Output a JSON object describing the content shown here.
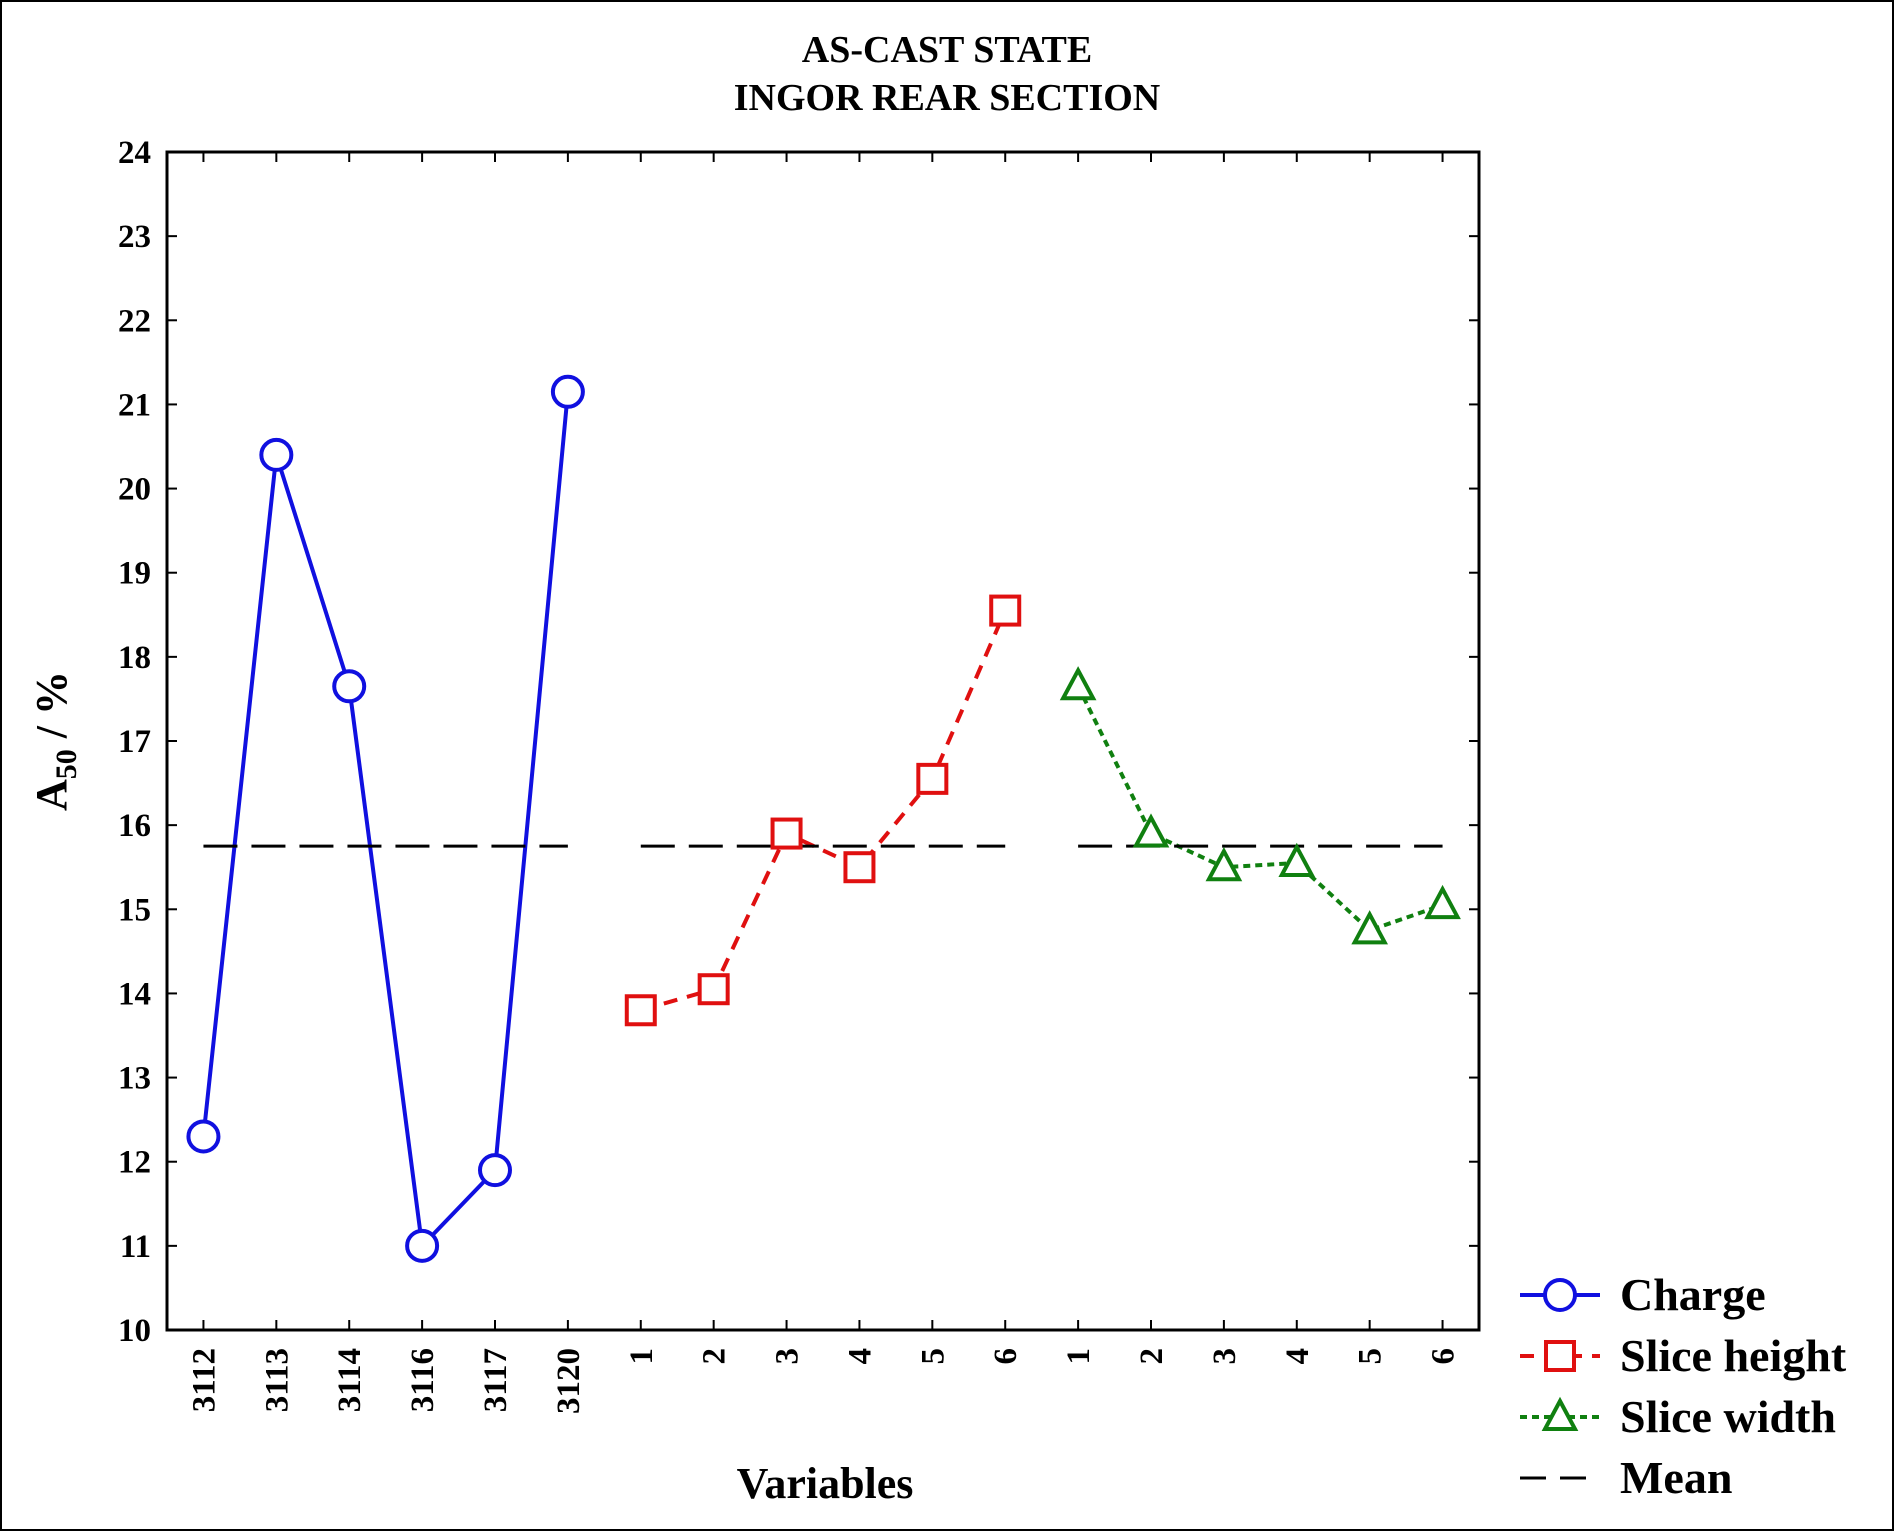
{
  "chart_data": {
    "type": "line",
    "title": [
      "AS-CAST STATE",
      "INGOR REAR SECTION"
    ],
    "x_label": "Variables",
    "y_label": [
      "A",
      "50",
      " / %"
    ],
    "categories": [
      "3112",
      "3113",
      "3114",
      "3116",
      "3117",
      "3120",
      "1",
      "2",
      "3",
      "4",
      "5",
      "6",
      "1",
      "2",
      "3",
      "4",
      "5",
      "6"
    ],
    "series": [
      {
        "name": "Charge",
        "color": "#1010e0",
        "dash": "solid",
        "marker": "circle",
        "values": [
          12.3,
          20.4,
          17.65,
          11.0,
          11.9,
          21.15,
          null,
          null,
          null,
          null,
          null,
          null,
          null,
          null,
          null,
          null,
          null,
          null
        ]
      },
      {
        "name": "Slice height",
        "color": "#e01010",
        "dash": "dashed",
        "marker": "square",
        "values": [
          null,
          null,
          null,
          null,
          null,
          null,
          13.8,
          14.05,
          15.9,
          15.5,
          16.55,
          18.55,
          null,
          null,
          null,
          null,
          null,
          null
        ]
      },
      {
        "name": "Slice width",
        "color": "#108010",
        "dash": "dotted",
        "marker": "triangle",
        "values": [
          null,
          null,
          null,
          null,
          null,
          null,
          null,
          null,
          null,
          null,
          null,
          null,
          17.65,
          15.9,
          15.5,
          15.55,
          14.75,
          15.05
        ]
      },
      {
        "name": "Mean",
        "color": "#000000",
        "dash": "long-dash",
        "marker": "none",
        "values": [
          15.75,
          15.75,
          15.75,
          15.75,
          15.75,
          15.75,
          15.75,
          15.75,
          15.75,
          15.75,
          15.75,
          15.75,
          15.75,
          15.75,
          15.75,
          15.75,
          15.75,
          15.75
        ]
      }
    ],
    "ylim": [
      10,
      24
    ],
    "yticks": [
      10,
      11,
      12,
      13,
      14,
      15,
      16,
      17,
      18,
      19,
      20,
      21,
      22,
      23,
      24
    ],
    "legend": "right"
  }
}
